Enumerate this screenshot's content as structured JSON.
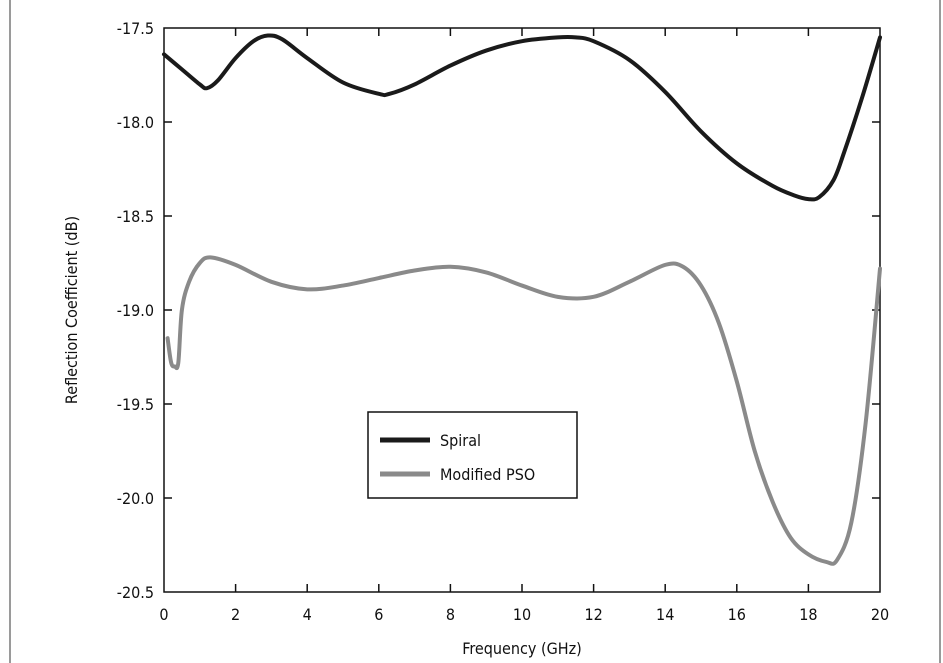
{
  "chart_data": {
    "type": "line",
    "title": "",
    "xlabel": "Frequency (GHz)",
    "ylabel": "Reflection Coefficient (dB)",
    "xlim": [
      0,
      20
    ],
    "ylim": [
      -20.5,
      -17.5
    ],
    "x_ticks": [
      "0",
      "2",
      "4",
      "6",
      "8",
      "10",
      "12",
      "14",
      "16",
      "18",
      "20"
    ],
    "y_ticks": [
      "-17.5",
      "-18.0",
      "-18.5",
      "-19.0",
      "-19.5",
      "-20.0",
      "-20.5"
    ],
    "grid": false,
    "legend_position": "center-left",
    "series": [
      {
        "name": "Spiral",
        "color": "#1a1a1a",
        "x": [
          0,
          0.5,
          1,
          1.2,
          1.5,
          2,
          2.5,
          2.9,
          3.3,
          4,
          5,
          6,
          6.3,
          7,
          8,
          9,
          10,
          11,
          11.5,
          12,
          13,
          14,
          15,
          16,
          17,
          17.6,
          18,
          18.3,
          18.7,
          19,
          19.5,
          20
        ],
        "y": [
          -17.64,
          -17.72,
          -17.8,
          -17.82,
          -17.78,
          -17.66,
          -17.57,
          -17.54,
          -17.56,
          -17.66,
          -17.79,
          -17.85,
          -17.85,
          -17.8,
          -17.7,
          -17.62,
          -17.57,
          -17.55,
          -17.55,
          -17.57,
          -17.67,
          -17.84,
          -18.05,
          -18.22,
          -18.34,
          -18.39,
          -18.41,
          -18.4,
          -18.31,
          -18.16,
          -17.87,
          -17.55
        ]
      },
      {
        "name": "Modified PSO",
        "color": "#8a8a8a",
        "x": [
          0.1,
          0.2,
          0.3,
          0.4,
          0.5,
          0.7,
          1,
          1.3,
          2,
          3,
          4,
          5,
          6,
          7,
          8,
          9,
          10,
          11,
          12,
          13,
          14,
          14.5,
          15,
          15.5,
          16,
          16.5,
          17,
          17.5,
          18,
          18.5,
          18.8,
          19.2,
          19.6,
          20
        ],
        "y": [
          -19.15,
          -19.28,
          -19.3,
          -19.28,
          -19.0,
          -18.85,
          -18.75,
          -18.72,
          -18.76,
          -18.85,
          -18.89,
          -18.87,
          -18.83,
          -18.79,
          -18.77,
          -18.8,
          -18.87,
          -18.93,
          -18.93,
          -18.85,
          -18.76,
          -18.77,
          -18.87,
          -19.07,
          -19.38,
          -19.75,
          -20.02,
          -20.21,
          -20.3,
          -20.34,
          -20.33,
          -20.13,
          -19.6,
          -18.78
        ]
      }
    ]
  }
}
